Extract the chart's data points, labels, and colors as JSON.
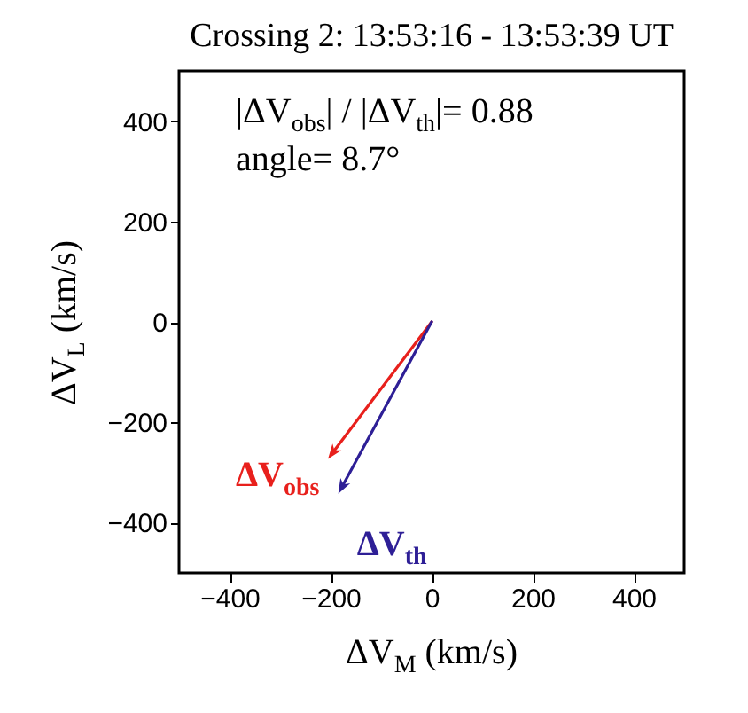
{
  "chart_data": {
    "type": "line",
    "title": "Crossing 2: 13:53:16 - 13:53:39 UT",
    "xlabel": "ΔV$_{M}$ (km/s)",
    "ylabel": "ΔV$_{L}$ (km/s)",
    "xlim": [
      -500,
      500
    ],
    "ylim": [
      -500,
      500
    ],
    "xticks": [
      -400,
      -200,
      0,
      200,
      400
    ],
    "yticks": [
      -400,
      -200,
      0,
      200,
      400
    ],
    "series": [
      {
        "name": "ΔV$_{obs}$",
        "color": "#e8201c",
        "x": [
          0,
          -194
        ],
        "values": [
          0,
          -258
        ]
      },
      {
        "name": "ΔV$_{th}$",
        "color": "#2e1f96",
        "x": [
          0,
          -176
        ],
        "values": [
          0,
          -326
        ]
      }
    ],
    "annotations": [
      "|ΔV$_{obs}$| / |ΔV$_{th}$|= 0.88",
      "angle= 8.7°"
    ]
  }
}
